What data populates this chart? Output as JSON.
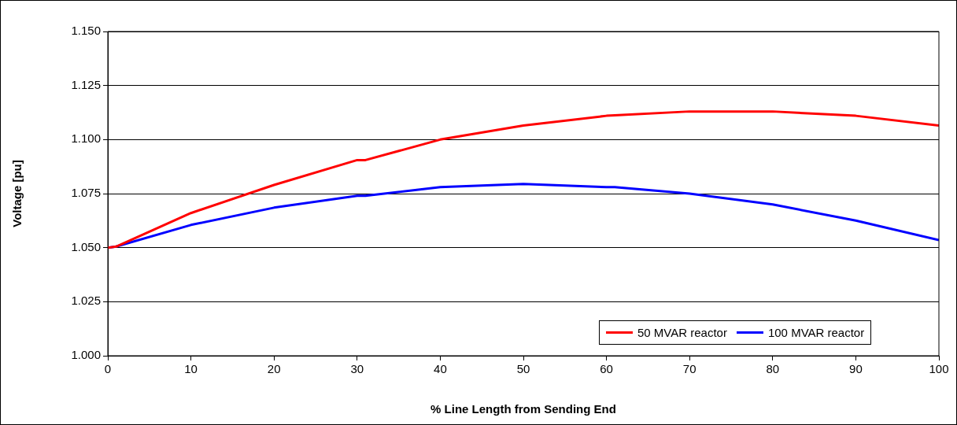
{
  "chart_data": {
    "type": "line",
    "xlabel": "% Line Length from Sending End",
    "ylabel": "Voltage [pu]",
    "x": [
      0,
      1,
      10,
      20,
      30,
      31,
      40,
      50,
      60,
      61,
      70,
      80,
      90,
      100
    ],
    "series": [
      {
        "name": "50 MVAR reactor",
        "color": "#ff0000",
        "values": [
          1.05,
          1.0505,
          1.066,
          1.079,
          1.0905,
          1.0905,
          1.1,
          1.1065,
          1.111,
          1.1112,
          1.113,
          1.113,
          1.111,
          1.1065
        ]
      },
      {
        "name": "100 MVAR reactor",
        "color": "#0000ff",
        "values": [
          1.05,
          1.0505,
          1.0605,
          1.0685,
          1.074,
          1.074,
          1.078,
          1.0795,
          1.078,
          1.078,
          1.075,
          1.07,
          1.0625,
          1.0535
        ]
      }
    ],
    "xlim": [
      0,
      100
    ],
    "xticks": [
      0,
      10,
      20,
      30,
      40,
      50,
      60,
      70,
      80,
      90,
      100
    ],
    "ylim": [
      1.0,
      1.15
    ],
    "yticks": [
      {
        "value": 1.0,
        "label": "1.000"
      },
      {
        "value": 1.025,
        "label": "1.025"
      },
      {
        "value": 1.05,
        "label": "1.050"
      },
      {
        "value": 1.075,
        "label": "1.075"
      },
      {
        "value": 1.1,
        "label": "1.100"
      },
      {
        "value": 1.125,
        "label": "1.125"
      },
      {
        "value": 1.15,
        "label": "1.150"
      }
    ],
    "grid": "y",
    "legend": "bottom right",
    "marker": "none",
    "line_style": "solid"
  }
}
